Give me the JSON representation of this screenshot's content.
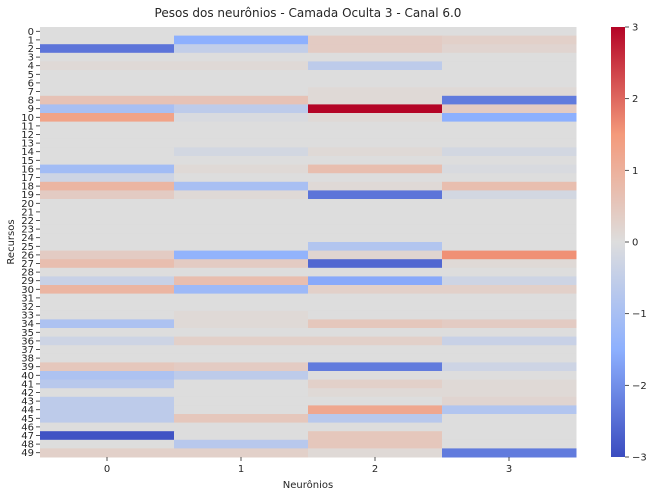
{
  "chart_data": {
    "type": "heatmap",
    "title": "Pesos dos neurônios - Camada Oculta 3 - Canal 6.0",
    "xlabel": "Neurônios",
    "ylabel": "Recursos",
    "x_categories": [
      "0",
      "1",
      "2",
      "3"
    ],
    "y_categories": [
      "0",
      "1",
      "2",
      "3",
      "4",
      "5",
      "6",
      "7",
      "8",
      "9",
      "10",
      "11",
      "12",
      "13",
      "14",
      "15",
      "16",
      "17",
      "18",
      "19",
      "20",
      "21",
      "22",
      "23",
      "24",
      "25",
      "26",
      "27",
      "28",
      "29",
      "30",
      "31",
      "32",
      "33",
      "34",
      "35",
      "36",
      "37",
      "38",
      "39",
      "40",
      "41",
      "42",
      "43",
      "44",
      "45",
      "46",
      "47",
      "48",
      "49"
    ],
    "colorbar": {
      "colormap": "coolwarm",
      "vmin": -3,
      "vmax": 3,
      "ticks": [
        "3",
        "2",
        "1",
        "0",
        "−1",
        "−2",
        "−3"
      ]
    },
    "values": [
      [
        0.0,
        0.0,
        0.0,
        0.0
      ],
      [
        0.0,
        -1.5,
        0.4,
        0.3
      ],
      [
        -2.4,
        -0.5,
        0.4,
        0.2
      ],
      [
        0.0,
        0.0,
        0.0,
        0.0
      ],
      [
        0.1,
        0.1,
        -0.6,
        0.0
      ],
      [
        0.0,
        0.0,
        0.0,
        0.0
      ],
      [
        0.0,
        0.0,
        0.0,
        0.0
      ],
      [
        0.0,
        0.0,
        0.1,
        0.1
      ],
      [
        0.6,
        0.6,
        0.1,
        -2.3
      ],
      [
        -1.0,
        -0.6,
        3.0,
        0.4
      ],
      [
        1.3,
        -0.1,
        0.1,
        -1.5
      ],
      [
        0.0,
        0.0,
        0.0,
        0.0
      ],
      [
        0.0,
        0.0,
        0.0,
        0.0
      ],
      [
        0.0,
        0.0,
        0.0,
        0.0
      ],
      [
        0.0,
        -0.2,
        0.1,
        -0.2
      ],
      [
        0.0,
        0.0,
        0.0,
        0.0
      ],
      [
        -1.1,
        0.1,
        0.7,
        -0.1
      ],
      [
        -0.3,
        0.0,
        0.0,
        0.0
      ],
      [
        0.9,
        -1.0,
        0.1,
        0.7
      ],
      [
        0.4,
        0.1,
        -2.4,
        -0.2
      ],
      [
        0.0,
        0.0,
        0.0,
        0.0
      ],
      [
        0.0,
        0.0,
        0.0,
        0.0
      ],
      [
        0.0,
        0.0,
        0.0,
        0.0
      ],
      [
        0.0,
        0.0,
        0.0,
        0.0
      ],
      [
        0.0,
        0.0,
        0.0,
        0.0
      ],
      [
        0.0,
        0.0,
        -0.8,
        0.0
      ],
      [
        0.4,
        -1.4,
        0.2,
        1.6
      ],
      [
        0.7,
        0.4,
        -2.6,
        0.1
      ],
      [
        0.0,
        0.0,
        0.0,
        0.0
      ],
      [
        -0.4,
        0.7,
        -1.6,
        -0.3
      ],
      [
        0.9,
        -1.2,
        0.3,
        0.3
      ],
      [
        0.0,
        0.0,
        0.0,
        0.0
      ],
      [
        0.0,
        0.0,
        0.0,
        0.0
      ],
      [
        0.0,
        0.1,
        0.0,
        0.0
      ],
      [
        -0.9,
        0.1,
        0.5,
        0.4
      ],
      [
        0.0,
        0.0,
        0.0,
        0.0
      ],
      [
        -0.3,
        0.3,
        0.3,
        -0.4
      ],
      [
        0.0,
        0.0,
        0.0,
        0.0
      ],
      [
        0.0,
        0.0,
        0.0,
        0.0
      ],
      [
        0.5,
        0.4,
        -2.3,
        -0.3
      ],
      [
        -0.9,
        -0.6,
        0.0,
        0.0
      ],
      [
        -0.7,
        0.0,
        0.3,
        0.1
      ],
      [
        0.0,
        0.0,
        0.1,
        0.1
      ],
      [
        -0.6,
        0.0,
        0.0,
        0.2
      ],
      [
        -0.6,
        0.0,
        1.2,
        -0.8
      ],
      [
        -0.6,
        0.5,
        -0.7,
        0.0
      ],
      [
        0.0,
        0.0,
        0.0,
        0.0
      ],
      [
        -2.9,
        0.0,
        0.5,
        0.0
      ],
      [
        0.0,
        -0.7,
        0.5,
        0.0
      ],
      [
        0.3,
        0.3,
        0.1,
        -2.3
      ]
    ]
  }
}
